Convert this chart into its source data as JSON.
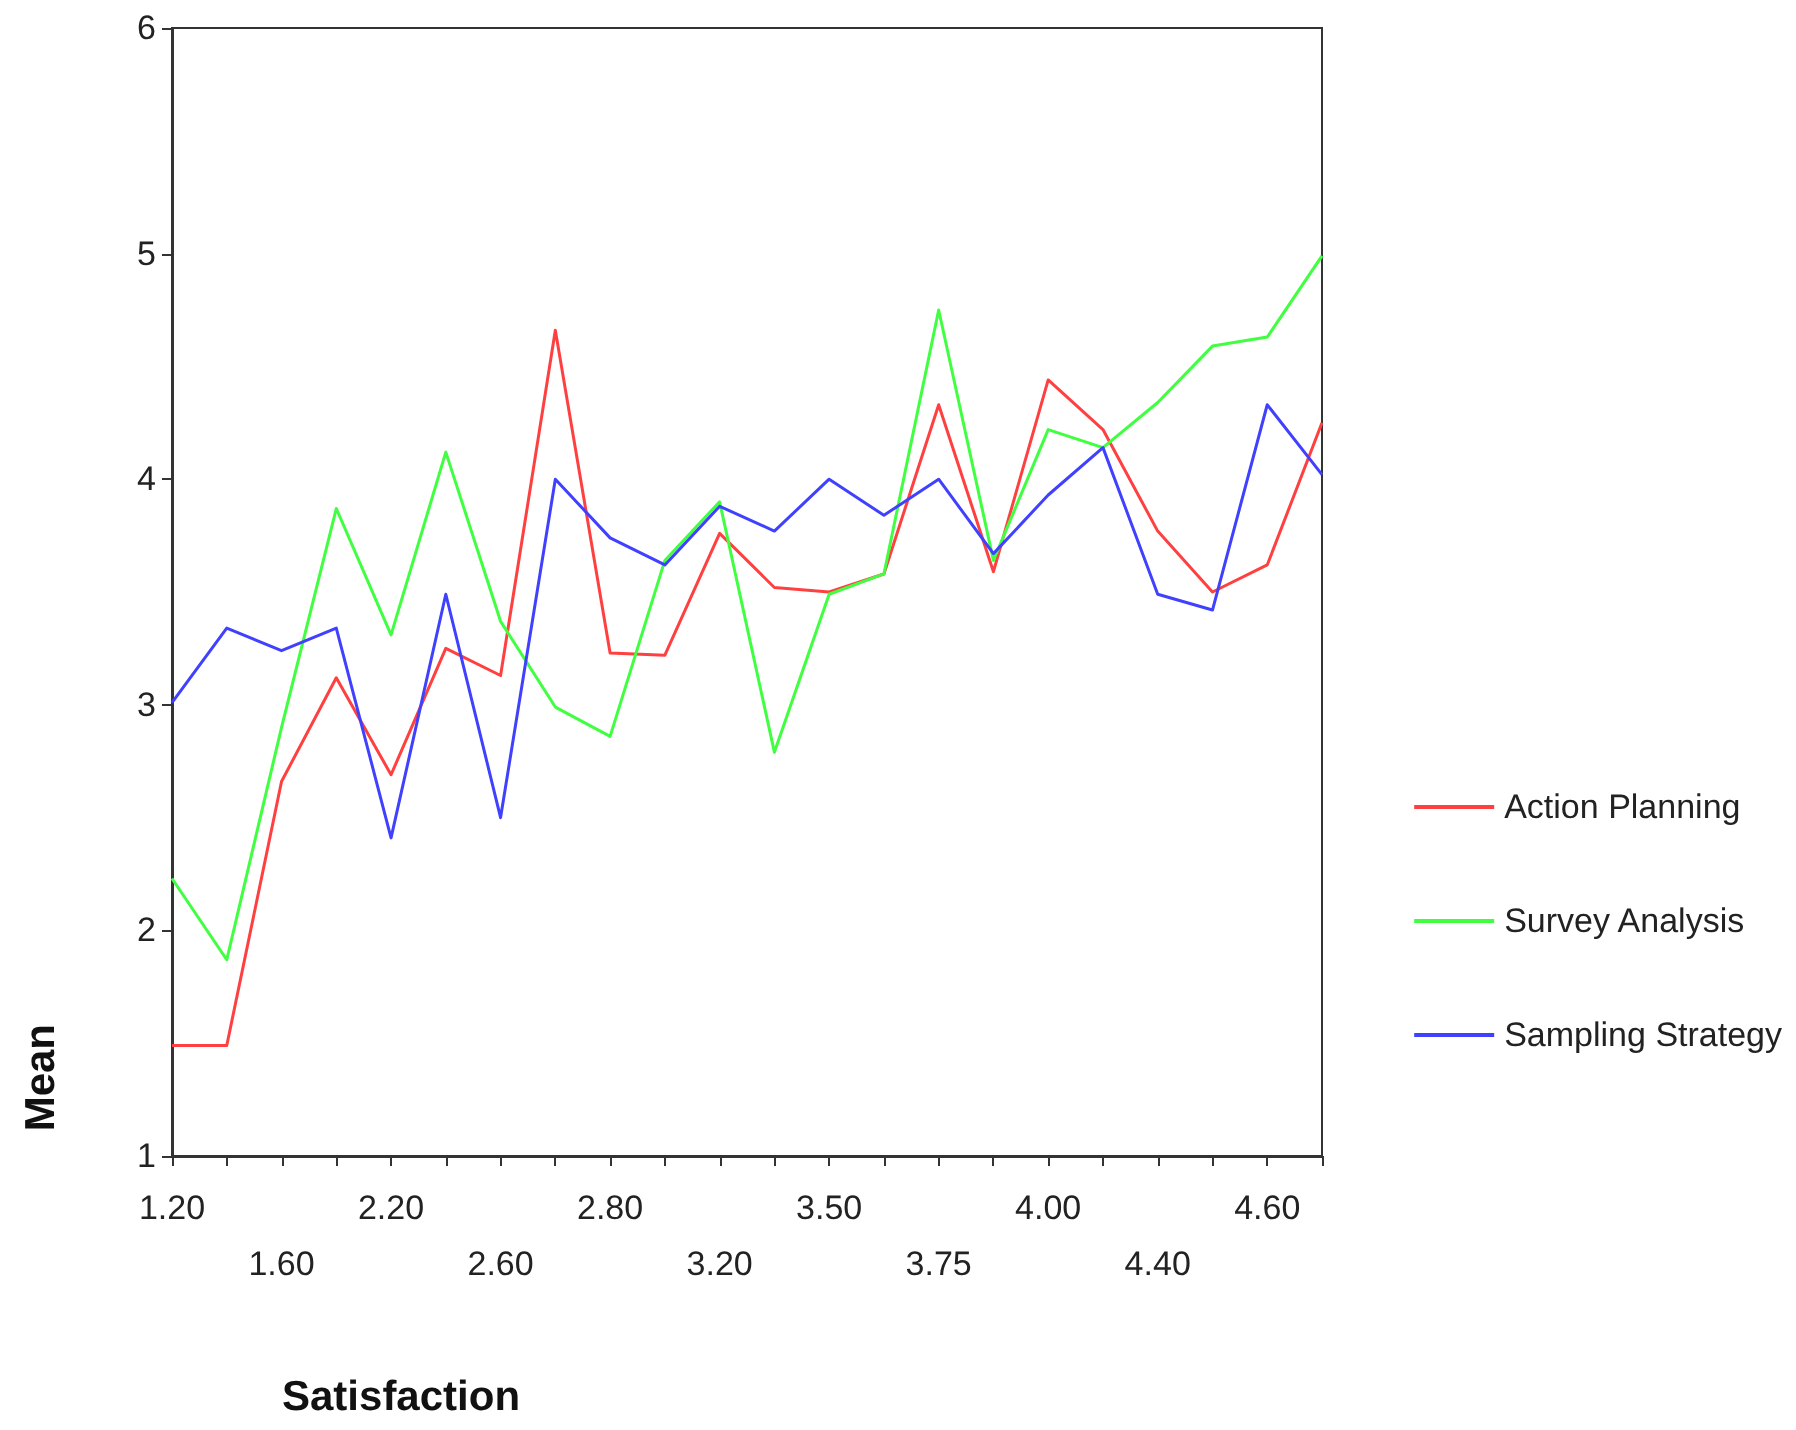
{
  "chart_data": {
    "type": "line",
    "xlabel": "Satisfaction",
    "ylabel": "Mean",
    "categories": [
      "1.20",
      null,
      "1.60",
      null,
      "2.20",
      null,
      "2.60",
      null,
      "2.80",
      null,
      "3.20",
      null,
      "3.50",
      null,
      "3.75",
      null,
      "4.00",
      null,
      "4.40",
      null,
      "4.60",
      null
    ],
    "series": [
      {
        "name": "Action Planning",
        "color": "#ff4040",
        "values": [
          1.49,
          1.49,
          2.66,
          3.12,
          2.69,
          3.25,
          3.13,
          4.66,
          3.23,
          3.22,
          3.76,
          3.52,
          3.5,
          3.58,
          4.33,
          3.59,
          4.44,
          4.22,
          3.77,
          3.5,
          3.62,
          4.25
        ]
      },
      {
        "name": "Survey Analysis",
        "color": "#40ff40",
        "values": [
          2.23,
          1.87,
          2.9,
          3.87,
          3.31,
          4.12,
          3.37,
          2.99,
          2.86,
          3.64,
          3.9,
          2.79,
          3.49,
          3.58,
          4.75,
          3.64,
          4.22,
          4.14,
          4.34,
          4.59,
          4.63,
          4.99
        ]
      },
      {
        "name": "Sampling Strategy",
        "color": "#4040ff",
        "values": [
          3.01,
          3.34,
          3.24,
          3.34,
          2.41,
          3.49,
          2.5,
          4.0,
          3.74,
          3.62,
          3.88,
          3.77,
          4.0,
          3.84,
          4.0,
          3.67,
          3.93,
          4.14,
          3.49,
          3.42,
          4.33,
          4.02
        ]
      }
    ],
    "ylim": [
      1,
      6
    ],
    "yticks": [
      1,
      2,
      3,
      4,
      5,
      6
    ],
    "grid": false,
    "legend": "right",
    "marker": "none",
    "line_style": "solid"
  }
}
